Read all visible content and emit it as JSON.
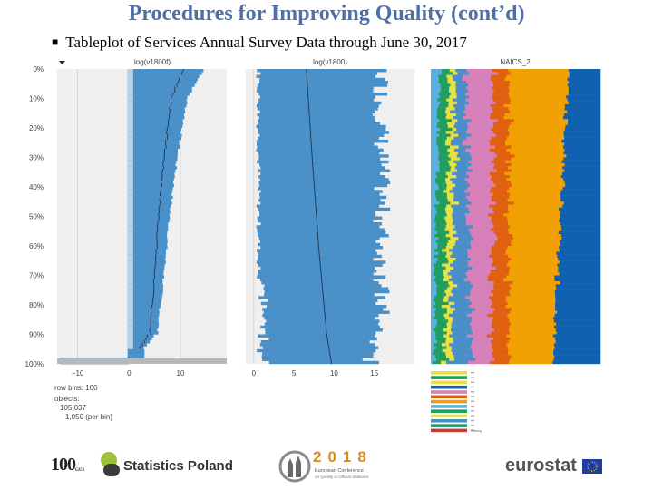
{
  "slide": {
    "title": "Procedures for Improving Quality (cont’d)",
    "bullet": "Tableplot of Services Annual Survey Data through June 30, 2017"
  },
  "colors": {
    "title": "#4f6fa8",
    "bar": "#4a90c8",
    "bar_light": "#b8d4ea",
    "panel_bg": "#efefef",
    "grid": "#c8c8c8",
    "naics": [
      "#5aaee0",
      "#1f9e60",
      "#e8e040",
      "#4a8ec8",
      "#d67fb8",
      "#e06010",
      "#f0a000",
      "#1060b0"
    ]
  },
  "chart_data": [
    {
      "type": "bar",
      "title": "log(v1800f)",
      "y_tick_labels": [
        "0%",
        "10%",
        "20%",
        "30%",
        "40%",
        "50%",
        "60%",
        "70%",
        "80%",
        "90%",
        "100%"
      ],
      "x_tick_labels": [
        "−10",
        "0",
        "10"
      ],
      "xlim": [
        -14,
        19
      ],
      "n_bins": 100,
      "grid": true,
      "sort_indicator": "descending",
      "series_end_values": {
        "bin_1": 14.5,
        "bin_10": 11.4,
        "bin_30": 9.4,
        "bin_50": 7.9,
        "bin_70": 6.8,
        "bin_90": 5.5,
        "bin_95": 3.0,
        "bin_100": -13.5
      }
    },
    {
      "type": "bar",
      "title": "log(v1800)",
      "x_tick_labels": [
        "0",
        "5",
        "10",
        "15"
      ],
      "xlim": [
        -1,
        20
      ],
      "n_bins": 100,
      "grid": true,
      "mean_values": {
        "bin_1": 6.5,
        "bin_30": 7.2,
        "bin_60": 8.0,
        "bin_90": 9.0,
        "bin_100": 9.6
      }
    },
    {
      "type": "bar",
      "title": "NAICS_2",
      "stacked": true,
      "n_bins": 100,
      "legend_count": 13,
      "legend_last": "missing",
      "category_shares_start": [
        0.05,
        0.06,
        0.04,
        0.06,
        0.16,
        0.09,
        0.35,
        0.19
      ],
      "category_shares_end": [
        0.02,
        0.06,
        0.04,
        0.12,
        0.12,
        0.1,
        0.26,
        0.28
      ]
    }
  ],
  "info": {
    "row_bins_label": "row bins: 100",
    "objects_label": "objects:",
    "objects_total": "105,037",
    "objects_per_bin": "1,050 (per bin)"
  },
  "logos": {
    "statistics_poland": "Statistics Poland",
    "hundred_mark": "100",
    "gus": "GUS",
    "conference_year": "2018",
    "conference_name_1": "European Conference",
    "conference_name_2": "on Quality in Official Statistics",
    "eurostat": "eurostat"
  }
}
